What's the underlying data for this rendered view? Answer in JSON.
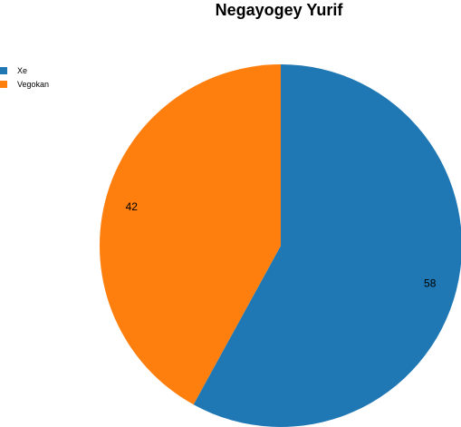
{
  "chart_data": {
    "type": "pie",
    "title": "Negayogey Yurif",
    "legend_position": "top-left",
    "slices": [
      {
        "label": "Xe",
        "value": 58,
        "color": "#1f77b4"
      },
      {
        "label": "Vegokan",
        "value": 42,
        "color": "#ff7f0e"
      }
    ]
  }
}
